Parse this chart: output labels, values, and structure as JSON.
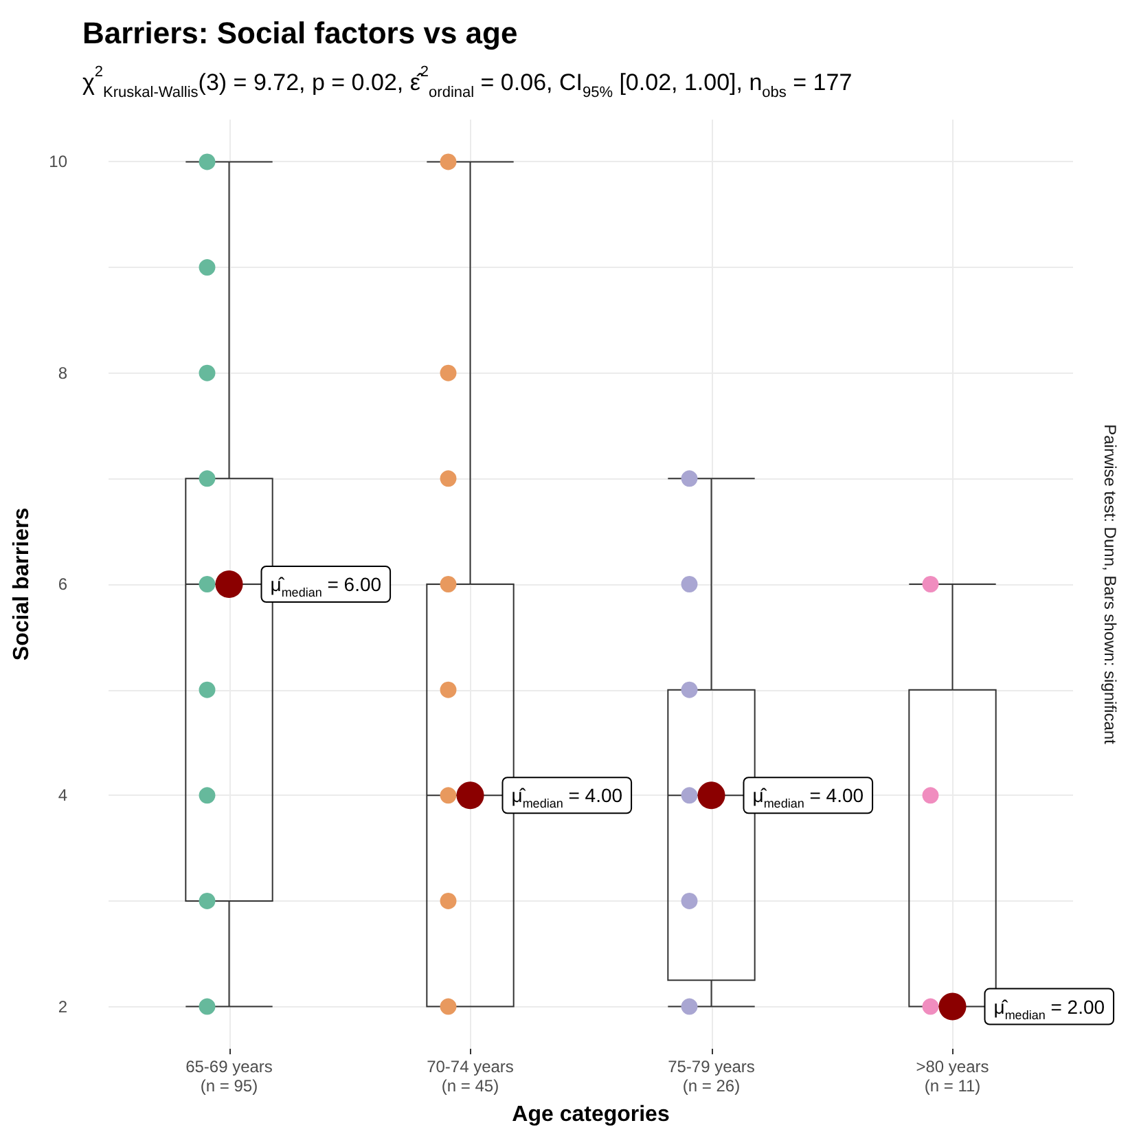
{
  "chart_data": {
    "type": "box",
    "title": "Barriers: Social factors vs age",
    "subtitle": "χ$^{2}$$_{Kruskal-Wallis}$(3) = 9.72, p = 0.02, ε̂$^{2}$$_{ordinal}$ = 0.06, CI$_{95%}$ [0.02, 1.00], n$_{obs}$ = 177",
    "xlabel": "Age categories",
    "ylabel": "Social barriers",
    "categories": [
      "65-69 years\n(n = 95)",
      "70-74 years\n(n = 45)",
      "75-79 years\n(n = 26)",
      ">80 years\n(n = 11)"
    ],
    "series": [
      {
        "type": "box",
        "color": "#333333",
        "boxes": [
          {
            "low": 2,
            "q1": 3,
            "median": 6,
            "q3": 7,
            "high": 10
          },
          {
            "low": 2,
            "q1": 2,
            "median": 4,
            "q3": 6,
            "high": 10
          },
          {
            "low": 2,
            "q1": 2.25,
            "median": 4,
            "q3": 5,
            "high": 7
          },
          {
            "low": 2,
            "q1": 2,
            "median": 2,
            "q3": 5,
            "high": 6
          }
        ]
      },
      {
        "type": "scatter",
        "color": "#66b99c",
        "x": [
          "65-69 years\n(n = 95)",
          "65-69 years\n(n = 95)",
          "65-69 years\n(n = 95)",
          "65-69 years\n(n = 95)",
          "65-69 years\n(n = 95)",
          "65-69 years\n(n = 95)",
          "65-69 years\n(n = 95)",
          "65-69 years\n(n = 95)",
          "65-69 years\n(n = 95)"
        ],
        "values": [
          2,
          3,
          4,
          5,
          6,
          7,
          8,
          9,
          10
        ]
      },
      {
        "type": "scatter",
        "color": "#e8995e",
        "x": [
          "70-74 years\n(n = 45)",
          "70-74 years\n(n = 45)",
          "70-74 years\n(n = 45)",
          "70-74 years\n(n = 45)",
          "70-74 years\n(n = 45)",
          "70-74 years\n(n = 45)",
          "70-74 years\n(n = 45)",
          "70-74 years\n(n = 45)"
        ],
        "values": [
          2,
          3,
          4,
          5,
          6,
          7,
          8,
          10
        ]
      },
      {
        "type": "scatter",
        "color": "#a9a6d2",
        "x": [
          "75-79 years\n(n = 26)",
          "75-79 years\n(n = 26)",
          "75-79 years\n(n = 26)",
          "75-79 years\n(n = 26)",
          "75-79 years\n(n = 26)",
          "75-79 years\n(n = 26)"
        ],
        "values": [
          2,
          3,
          4,
          5,
          6,
          7
        ]
      },
      {
        "type": "scatter",
        "color": "#f08dbf",
        "x": [
          ">80 years\n(n = 11)",
          ">80 years\n(n = 11)",
          ">80 years\n(n = 11)"
        ],
        "values": [
          2,
          4,
          6
        ]
      },
      {
        "type": "scatter",
        "color": "#8b0000",
        "x": [
          "65-69 years\n(n = 95)",
          "70-74 years\n(n = 45)",
          "75-79 years\n(n = 26)",
          ">80 years\n(n = 11)"
        ],
        "values": [
          6,
          4,
          4,
          2
        ]
      }
    ],
    "ylim": [
      1.6,
      10.4
    ],
    "yticks": [
      2,
      {
        "value": 3,
        "label": null
      },
      4,
      {
        "value": 5,
        "label": null
      },
      6,
      {
        "value": 7,
        "label": null
      },
      8,
      {
        "value": 9,
        "label": null
      },
      10
    ],
    "grid": true,
    "marker": "circle",
    "annotations": [
      {
        "text": "μ̂$_{median}$ = 6.00",
        "x": "65-69 years\n(n = 95)",
        "y": 6
      },
      {
        "text": "μ̂$_{median}$ = 4.00",
        "x": "70-74 years\n(n = 45)",
        "y": 4
      },
      {
        "text": "μ̂$_{median}$ = 4.00",
        "x": "75-79 years\n(n = 26)",
        "y": 4
      },
      {
        "text": "μ̂$_{median}$ = 2.00",
        "x": ">80 years\n(n = 11)",
        "y": 2
      },
      "Pairwise test: Dunn, Bars shown: significant"
    ]
  }
}
